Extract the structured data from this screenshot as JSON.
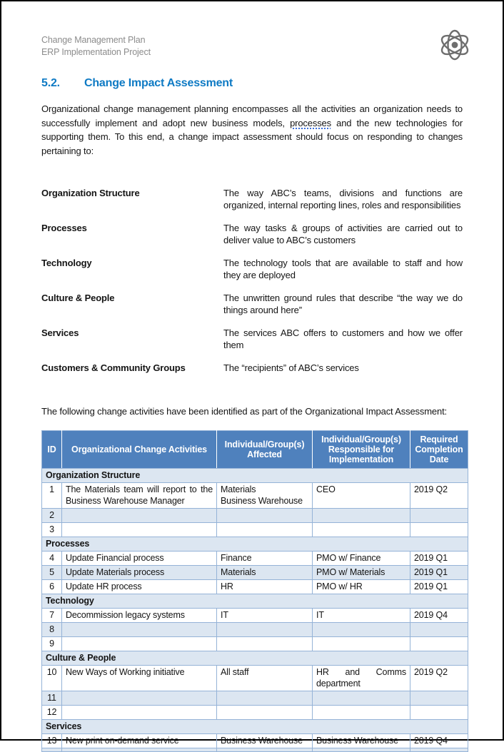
{
  "header": {
    "doc_title": "Change Management Plan",
    "doc_subtitle": "ERP Implementation Project",
    "logo_icon": "atom-icon"
  },
  "heading": {
    "number": "5.2.",
    "title": "Change Impact Assessment"
  },
  "intro_paragraph": {
    "pre": "Organizational change management planning encompasses all the activities an organization needs to successfully implement and adopt new business models, ",
    "underlined_word": "processes",
    "post": " and the new technologies for supporting them. To this end, a change impact assessment should focus on responding to changes pertaining to:"
  },
  "definitions": [
    {
      "term": "Organization Structure",
      "description": "The way ABC’s teams, divisions and functions are organized, internal reporting lines, roles and responsibilities"
    },
    {
      "term": "Processes",
      "description": "The way tasks & groups of activities are carried out to deliver value to ABC’s customers"
    },
    {
      "term": "Technology",
      "description": "The technology tools that are available to staff and how they are deployed"
    },
    {
      "term": "Culture & People",
      "description": "The unwritten ground rules that describe “the way we do things around here”"
    },
    {
      "term": "Services",
      "description": "The services ABC offers to customers and how we offer them"
    },
    {
      "term": "Customers & Community Groups",
      "description": "The “recipients” of ABC’s services"
    }
  ],
  "table_intro": "The following change activities have been identified as part of the Organizational Impact Assessment:",
  "activities_table": {
    "columns": [
      "ID",
      "Organizational Change Activities",
      "Individual/Group(s) Affected",
      "Individual/Group(s) Responsible for Implementation",
      "Required Completion Date"
    ],
    "sections": [
      {
        "title": "Organization Structure",
        "rows": [
          {
            "id": "1",
            "activity": "The Materials team will report to the Business Warehouse Manager",
            "affected": "Materials\nBusiness Warehouse",
            "responsible": "CEO",
            "date": "2019 Q2"
          },
          {
            "id": "2",
            "activity": "",
            "affected": "",
            "responsible": "",
            "date": ""
          },
          {
            "id": "3",
            "activity": "",
            "affected": "",
            "responsible": "",
            "date": ""
          }
        ]
      },
      {
        "title": "Processes",
        "rows": [
          {
            "id": "4",
            "activity": "Update Financial process",
            "affected": "Finance",
            "responsible": "PMO w/ Finance",
            "date": "2019 Q1"
          },
          {
            "id": "5",
            "activity": "Update Materials process",
            "affected": "Materials",
            "responsible": "PMO w/ Materials",
            "date": "2019 Q1"
          },
          {
            "id": "6",
            "activity": "Update HR process",
            "affected": "HR",
            "responsible": "PMO w/ HR",
            "date": "2019 Q1"
          }
        ]
      },
      {
        "title": "Technology",
        "rows": [
          {
            "id": "7",
            "activity": "Decommission legacy systems",
            "affected": "IT",
            "responsible": "IT",
            "date": "2019 Q4"
          },
          {
            "id": "8",
            "activity": "",
            "affected": "",
            "responsible": "",
            "date": ""
          },
          {
            "id": "9",
            "activity": "",
            "affected": "",
            "responsible": "",
            "date": ""
          }
        ]
      },
      {
        "title": "Culture & People",
        "rows": [
          {
            "id": "10",
            "activity": "New Ways of Working initiative",
            "affected": "All staff",
            "responsible": "HR and Comms department",
            "date": "2019 Q2"
          },
          {
            "id": "11",
            "activity": "",
            "affected": "",
            "responsible": "",
            "date": ""
          },
          {
            "id": "12",
            "activity": "",
            "affected": "",
            "responsible": "",
            "date": ""
          }
        ]
      },
      {
        "title": "Services",
        "rows": [
          {
            "id": "13",
            "activity": "New print on-demand service",
            "affected": "Business Warehouse",
            "responsible": "Business Warehouse",
            "date": "2019 Q4"
          }
        ]
      }
    ]
  },
  "colors": {
    "accent_heading": "#0e7ac4",
    "table_header_bg": "#4f81bd",
    "table_band_bg": "#dce6f1",
    "table_border": "#95b3d7",
    "header_text_gray": "#8c8c8c"
  }
}
